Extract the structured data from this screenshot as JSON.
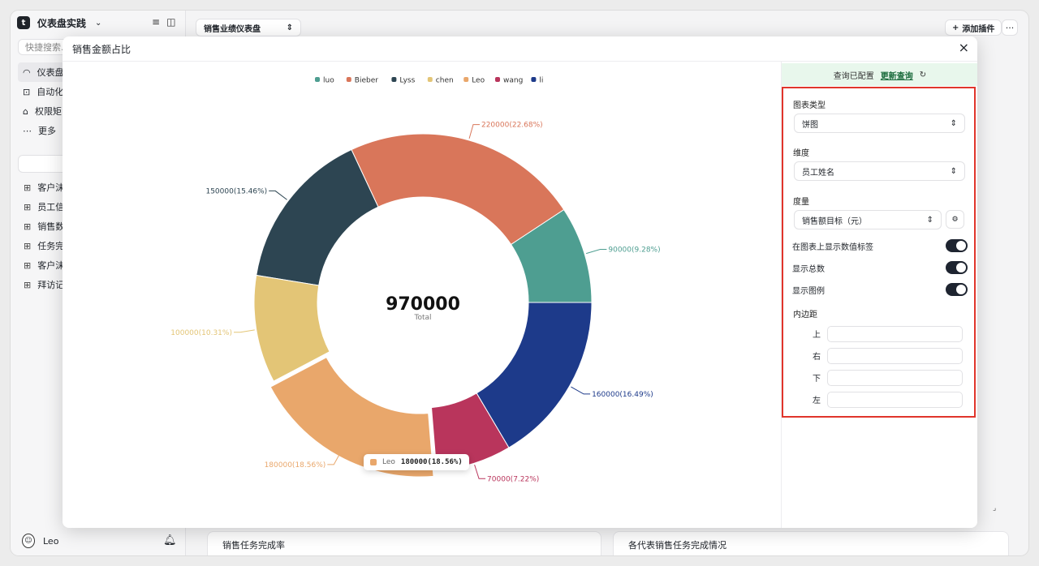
{
  "app": {
    "name": "仪表盘实践",
    "search_placeholder": "快捷搜索.",
    "nav": [
      {
        "icon": "dashboard-icon",
        "label": "仪表盘"
      },
      {
        "icon": "robot-icon",
        "label": "自动化"
      },
      {
        "icon": "lock-icon",
        "label": "权限矩"
      },
      {
        "icon": "ellipsis-icon",
        "label": "更多"
      }
    ],
    "tables": [
      "客户沫",
      "员工信",
      "销售数",
      "任务完",
      "客户沫",
      "拜访记"
    ],
    "user": "Leo"
  },
  "topbar": {
    "dashboard_select": "销售业绩仪表盘",
    "add_plugin": "添加插件",
    "more": "···"
  },
  "bottom_cards": [
    "销售任务完成率",
    "各代表销售任务完成情况"
  ],
  "modal": {
    "title": "销售金额占比",
    "close": "×"
  },
  "tooltip": {
    "name": "Leo",
    "value": "180000(18.56%)"
  },
  "panel": {
    "status": "查询已配置",
    "refresh": "更新查询",
    "chart_type_label": "图表类型",
    "chart_type_value": "饼图",
    "dimension_label": "维度",
    "dimension_value": "员工姓名",
    "measure_label": "度量",
    "measure_value": "销售额目标（元）",
    "toggles": [
      {
        "label": "在图表上显示数值标签",
        "on": true
      },
      {
        "label": "显示总数",
        "on": true
      },
      {
        "label": "显示图例",
        "on": true
      }
    ],
    "padding_label": "内边距",
    "padding": [
      "上",
      "右",
      "下",
      "左"
    ]
  },
  "chart_data": {
    "type": "pie",
    "donut": true,
    "total": "970000",
    "total_label": "Total",
    "legend_position": "top",
    "series": [
      {
        "name": "luo",
        "value": 90000,
        "label": "90000(9.28%)",
        "color": "#4e9e91"
      },
      {
        "name": "Bieber",
        "value": 220000,
        "label": "220000(22.68%)",
        "color": "#d9765a"
      },
      {
        "name": "Lyss",
        "value": 150000,
        "label": "150000(15.46%)",
        "color": "#2d4552"
      },
      {
        "name": "chen",
        "value": 100000,
        "label": "100000(10.31%)",
        "color": "#e3c576"
      },
      {
        "name": "Leo",
        "value": 180000,
        "label": "180000(18.56%)",
        "color": "#e9a76b"
      },
      {
        "name": "wang",
        "value": 70000,
        "label": "70000(7.22%)",
        "color": "#b9355c"
      },
      {
        "name": "li",
        "value": 160000,
        "label": "160000(16.49%)",
        "color": "#1d3a8a"
      }
    ]
  }
}
